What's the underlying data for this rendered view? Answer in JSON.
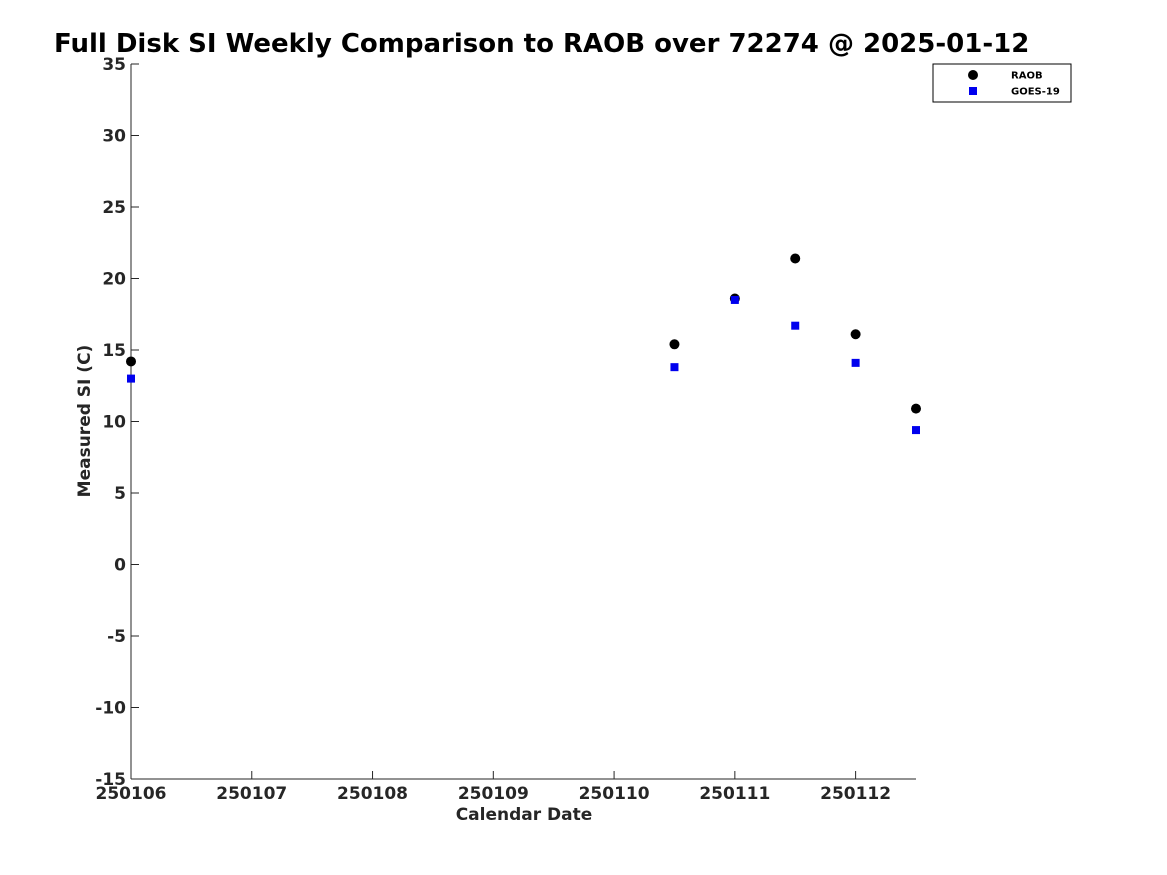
{
  "chart_data": {
    "type": "scatter",
    "title": "Full Disk SI Weekly Comparison to RAOB over 72274 @ 2025-01-12",
    "xlabel": "Calendar Date",
    "ylabel": "Measured SI (C)",
    "ylim": [
      -15,
      35
    ],
    "yticks": [
      -15,
      -10,
      -5,
      0,
      5,
      10,
      15,
      20,
      25,
      30,
      35
    ],
    "xlim": [
      0,
      6.5
    ],
    "xticks": [
      {
        "x": 0,
        "label": "250106"
      },
      {
        "x": 1,
        "label": "250107"
      },
      {
        "x": 2,
        "label": "250108"
      },
      {
        "x": 3,
        "label": "250109"
      },
      {
        "x": 4,
        "label": "250110"
      },
      {
        "x": 5,
        "label": "250111"
      },
      {
        "x": 6,
        "label": "250112"
      }
    ],
    "grid": false,
    "legend_position": "top-right",
    "series": [
      {
        "name": "RAOB",
        "marker": "circle",
        "color": "#000000",
        "points": [
          {
            "x": 0,
            "y": 14.2
          },
          {
            "x": 4.5,
            "y": 15.4
          },
          {
            "x": 5,
            "y": 18.6
          },
          {
            "x": 5.5,
            "y": 21.4
          },
          {
            "x": 6,
            "y": 16.1
          },
          {
            "x": 6.5,
            "y": 10.9
          }
        ]
      },
      {
        "name": "GOES-19",
        "marker": "square",
        "color": "#0000ee",
        "points": [
          {
            "x": 0,
            "y": 13.0
          },
          {
            "x": 4.5,
            "y": 13.8
          },
          {
            "x": 5,
            "y": 18.5
          },
          {
            "x": 5.5,
            "y": 16.7
          },
          {
            "x": 6,
            "y": 14.1
          },
          {
            "x": 6.5,
            "y": 9.4
          }
        ]
      }
    ]
  }
}
